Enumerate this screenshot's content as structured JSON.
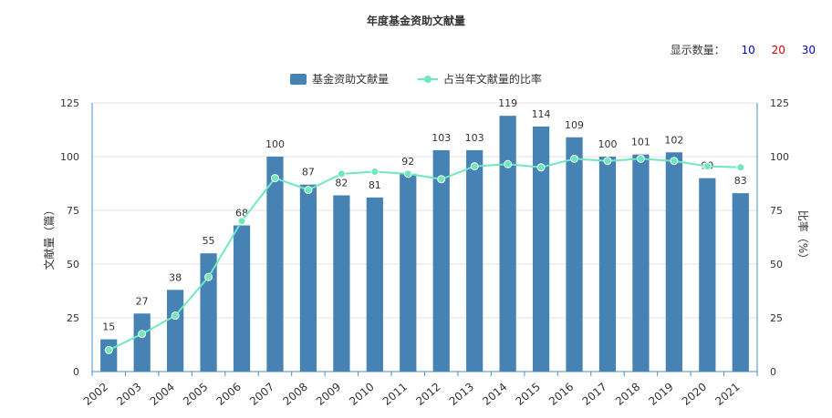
{
  "chart_data": {
    "type": "bar",
    "title": "年度基金资助文献量",
    "categories": [
      "2002",
      "2003",
      "2004",
      "2005",
      "2006",
      "2007",
      "2008",
      "2009",
      "2010",
      "2011",
      "2012",
      "2013",
      "2014",
      "2015",
      "2016",
      "2017",
      "2018",
      "2019",
      "2020",
      "2021"
    ],
    "series": [
      {
        "name": "基金资助文献量",
        "type": "bar",
        "color": "#4682b4",
        "values": [
          15,
          27,
          38,
          55,
          68,
          100,
          87,
          82,
          81,
          92,
          103,
          103,
          119,
          114,
          109,
          100,
          101,
          102,
          90,
          83
        ]
      },
      {
        "name": "占当年文献量的比率",
        "type": "line",
        "color": "#6ee9be",
        "values": [
          10,
          17.5,
          26,
          44,
          70,
          90,
          84.5,
          92,
          93,
          92,
          89.5,
          95.5,
          96.5,
          95,
          99,
          98,
          99,
          98,
          95.5,
          95
        ]
      }
    ],
    "ylabel": "文献量（篇）",
    "y2label": "比率（%）",
    "ylim": [
      0,
      125
    ],
    "y2lim": [
      0,
      125
    ],
    "yticks": [
      "0",
      "25",
      "50",
      "75",
      "100",
      "125"
    ],
    "y2ticks": [
      "0",
      "25",
      "50",
      "75",
      "100",
      "125"
    ],
    "grid": true,
    "legend": "top-center"
  },
  "display_count": {
    "label": "显示数量：",
    "options": [
      "10",
      "20",
      "30"
    ],
    "colors": [
      "#0000cc",
      "#cc0000",
      "#0000cc"
    ]
  }
}
